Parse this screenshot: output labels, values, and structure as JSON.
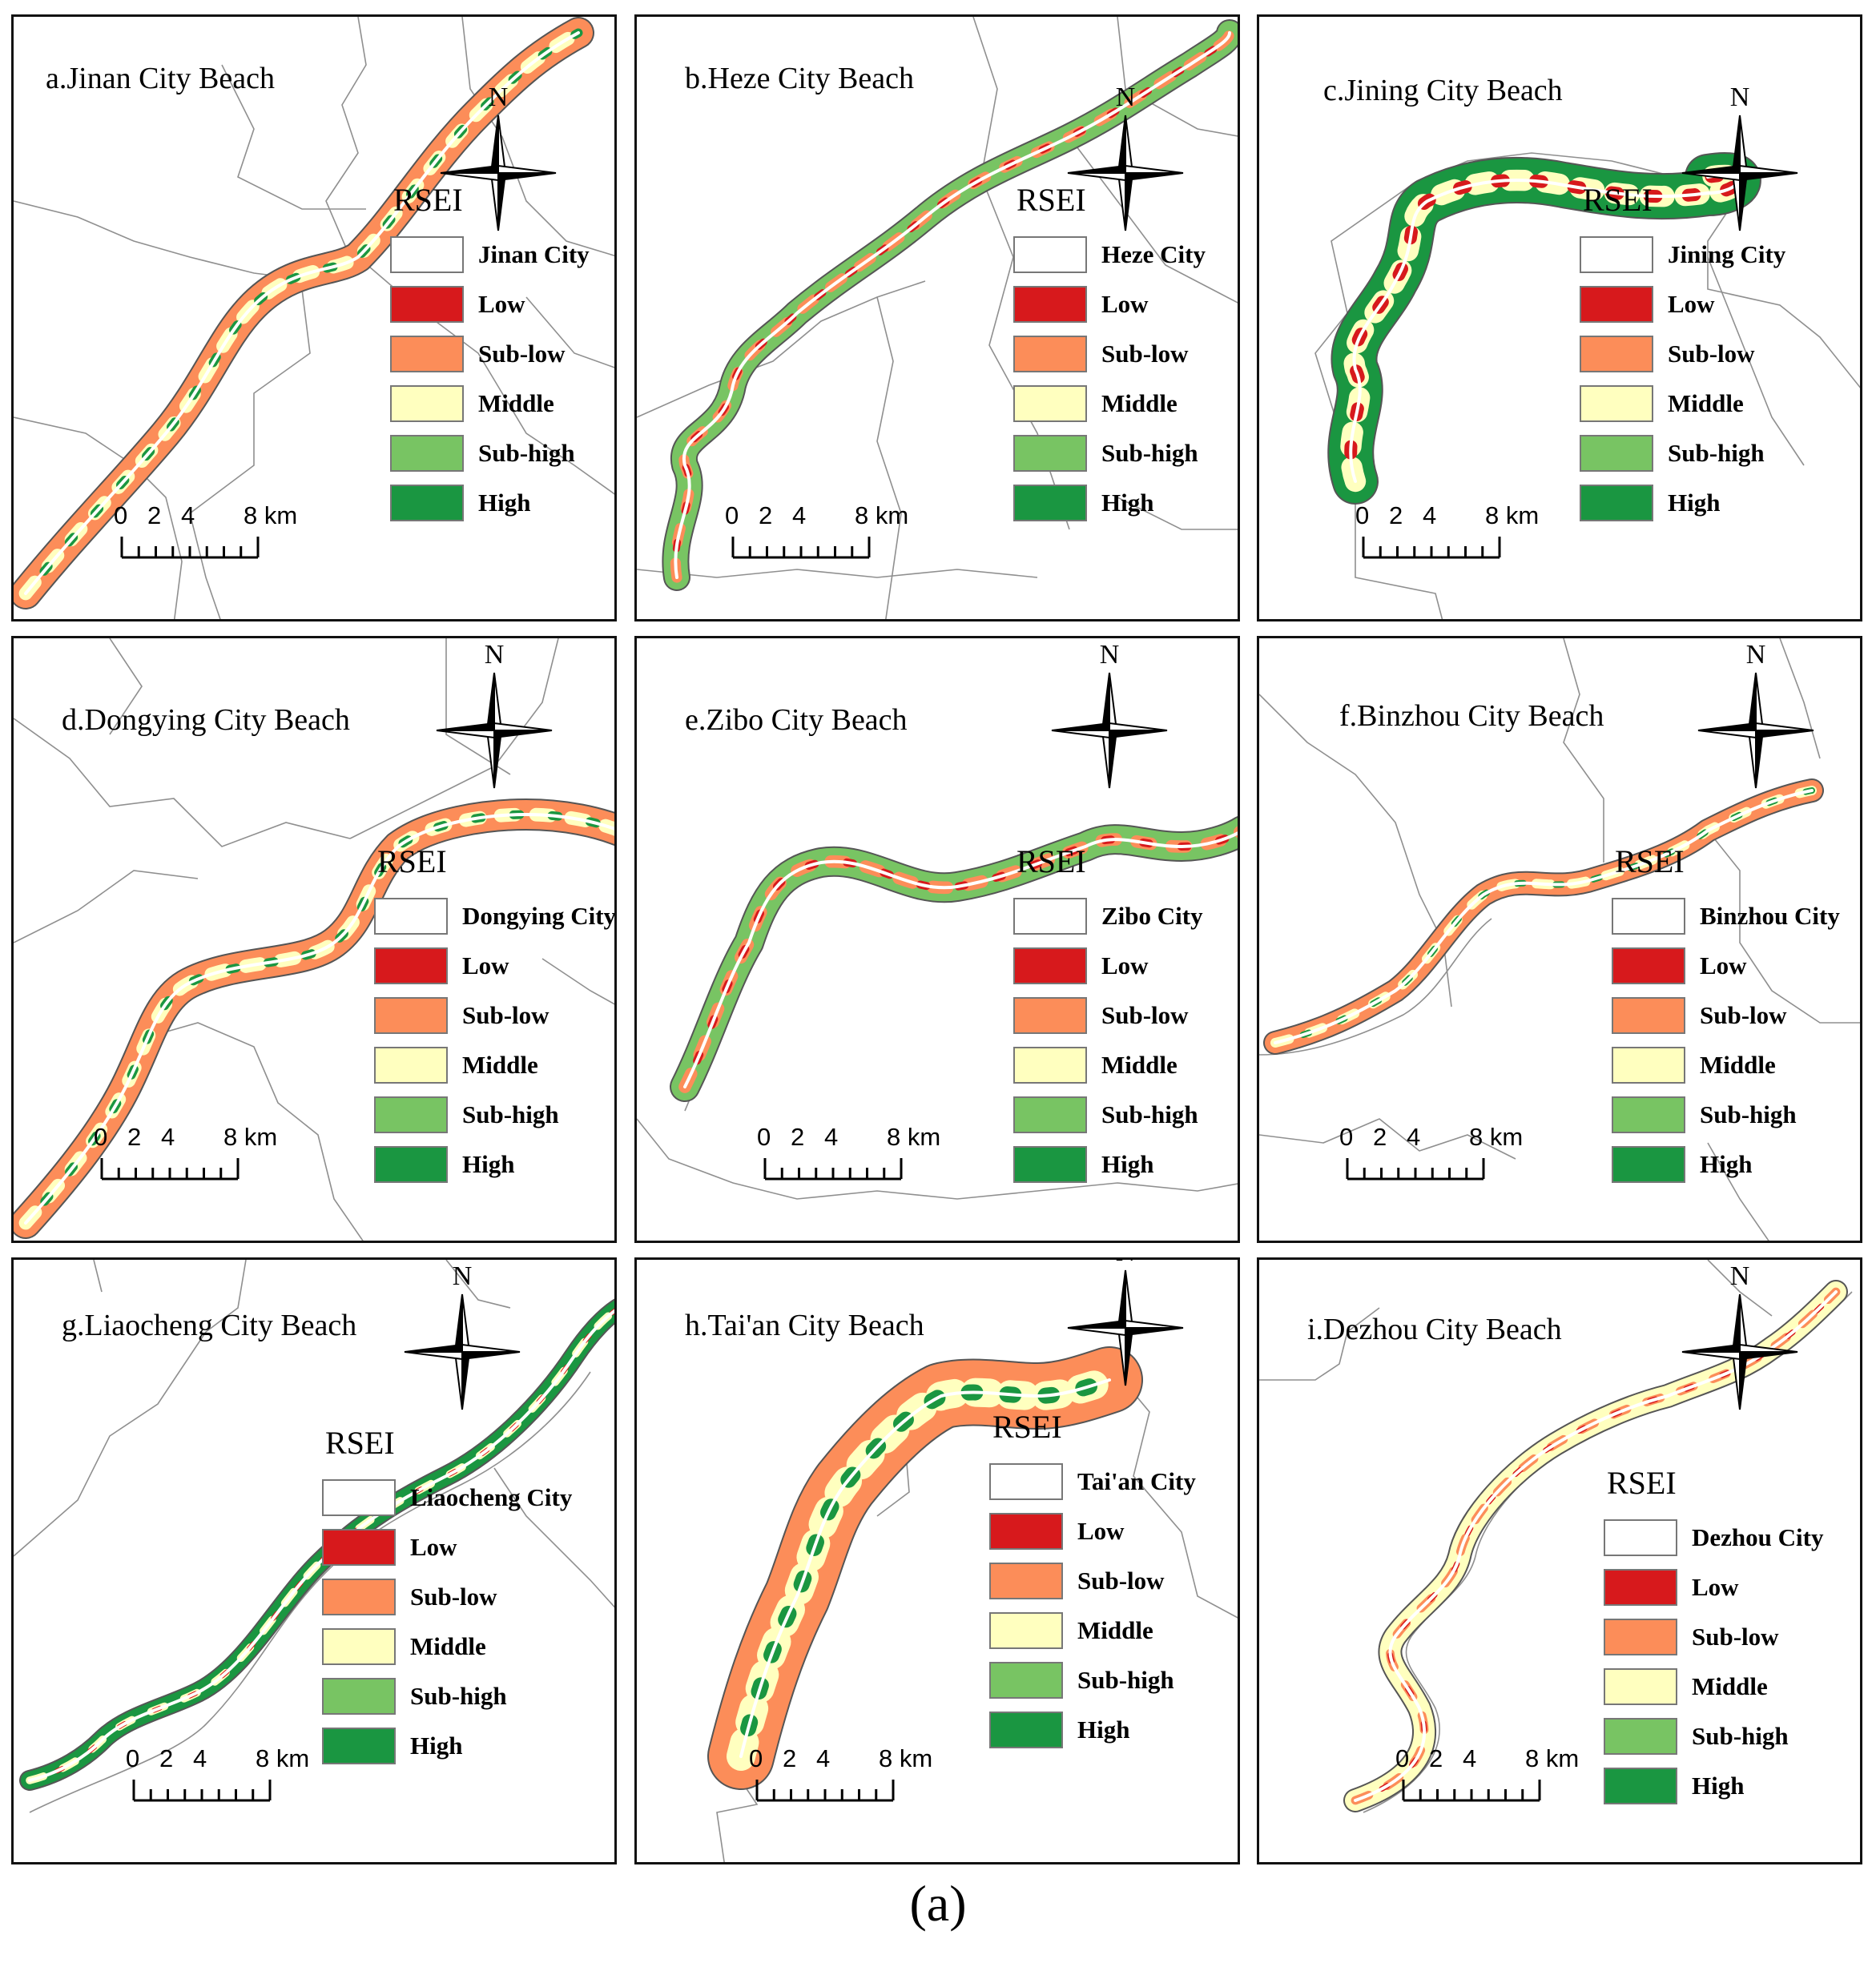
{
  "figure_label": "(a)",
  "legend_title": "RSEI",
  "legend_classes": [
    {
      "label": "Low",
      "color": "#d7191c"
    },
    {
      "label": "Sub-low",
      "color": "#fc8d59"
    },
    {
      "label": "Middle",
      "color": "#ffffbf"
    },
    {
      "label": "Sub-high",
      "color": "#78c463"
    },
    {
      "label": "High",
      "color": "#1a9641"
    }
  ],
  "compass_label": "N",
  "scale": {
    "ticks": [
      "0",
      "2",
      "4"
    ],
    "end": "8 km"
  },
  "panels": [
    {
      "title": "a.Jinan City Beach",
      "city": "Jinan City"
    },
    {
      "title": "b.Heze City Beach",
      "city": "Heze City"
    },
    {
      "title": "c.Jining City Beach",
      "city": "Jining City"
    },
    {
      "title": "d.Dongying City Beach",
      "city": "Dongying City"
    },
    {
      "title": "e.Zibo City Beach",
      "city": "Zibo City"
    },
    {
      "title": "f.Binzhou City Beach",
      "city": "Binzhou City"
    },
    {
      "title": "g.Liaocheng City Beach",
      "city": "Liaocheng City"
    },
    {
      "title": "h.Tai'an City Beach",
      "city": "Tai'an City"
    },
    {
      "title": "i.Dezhou City Beach",
      "city": "Dezhou City"
    }
  ]
}
